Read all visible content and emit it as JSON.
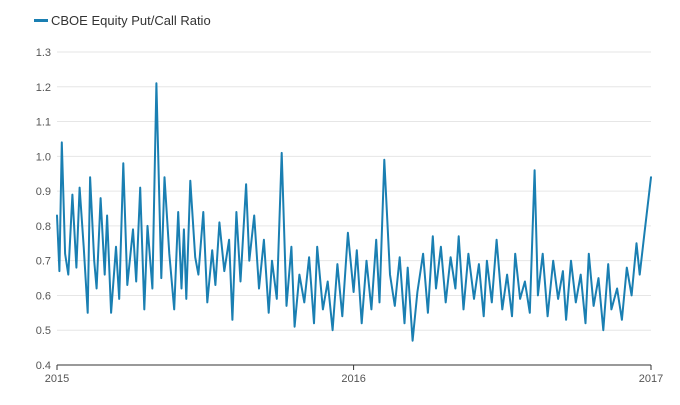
{
  "chart_data": {
    "type": "line",
    "legend": {
      "placement": "top-left"
    },
    "series": [
      {
        "name": "CBOE Equity Put/Call Ratio",
        "color": "#1a7fb2"
      }
    ],
    "ylim": [
      0.4,
      1.3
    ],
    "yticks": [
      "0.4",
      "0.5",
      "0.6",
      "0.7",
      "0.8",
      "0.9",
      "1.0",
      "1.1",
      "1.2",
      "1.3"
    ],
    "ytick_values": [
      0.4,
      0.5,
      0.6,
      0.7,
      0.8,
      0.9,
      1.0,
      1.1,
      1.2,
      1.3
    ],
    "xlim": [
      "2015-01-02",
      "2017-01-06"
    ],
    "xticks": [
      {
        "label": "2015",
        "date": "2015-01-02"
      },
      {
        "label": "2016",
        "date": "2016-01-04"
      },
      {
        "label": "2017",
        "date": "2017-01-06"
      }
    ],
    "grid": {
      "horizontal": true,
      "vertical": false,
      "color": "#e6e6e6"
    },
    "x": [
      "2015-01-02",
      "2015-01-05",
      "2015-01-08",
      "2015-01-12",
      "2015-01-16",
      "2015-01-21",
      "2015-01-26",
      "2015-01-30",
      "2015-02-04",
      "2015-02-09",
      "2015-02-12",
      "2015-02-17",
      "2015-02-20",
      "2015-02-25",
      "2015-03-02",
      "2015-03-05",
      "2015-03-10",
      "2015-03-16",
      "2015-03-20",
      "2015-03-25",
      "2015-03-30",
      "2015-04-06",
      "2015-04-10",
      "2015-04-15",
      "2015-04-20",
      "2015-04-24",
      "2015-04-30",
      "2015-05-05",
      "2015-05-11",
      "2015-05-15",
      "2015-05-21",
      "2015-05-27",
      "2015-06-01",
      "2015-06-05",
      "2015-06-08",
      "2015-06-11",
      "2015-06-16",
      "2015-06-22",
      "2015-06-26",
      "2015-07-02",
      "2015-07-07",
      "2015-07-13",
      "2015-07-17",
      "2015-07-22",
      "2015-07-28",
      "2015-08-03",
      "2015-08-07",
      "2015-08-12",
      "2015-08-17",
      "2015-08-24",
      "2015-08-28",
      "2015-09-03",
      "2015-09-09",
      "2015-09-15",
      "2015-09-21",
      "2015-09-25",
      "2015-10-01",
      "2015-10-07",
      "2015-10-13",
      "2015-10-19",
      "2015-10-23",
      "2015-10-29",
      "2015-11-04",
      "2015-11-10",
      "2015-11-16",
      "2015-11-20",
      "2015-11-27",
      "2015-12-03",
      "2015-12-09",
      "2015-12-15",
      "2015-12-21",
      "2015-12-28",
      "2016-01-04",
      "2016-01-08",
      "2016-01-14",
      "2016-01-20",
      "2016-01-26",
      "2016-02-01",
      "2016-02-05",
      "2016-02-11",
      "2016-02-18",
      "2016-02-24",
      "2016-03-01",
      "2016-03-07",
      "2016-03-11",
      "2016-03-17",
      "2016-03-23",
      "2016-03-30",
      "2016-04-05",
      "2016-04-11",
      "2016-04-15",
      "2016-04-21",
      "2016-04-27",
      "2016-05-03",
      "2016-05-09",
      "2016-05-13",
      "2016-05-19",
      "2016-05-25",
      "2016-06-01",
      "2016-06-07",
      "2016-06-13",
      "2016-06-17",
      "2016-06-23",
      "2016-06-29",
      "2016-07-06",
      "2016-07-12",
      "2016-07-18",
      "2016-07-22",
      "2016-07-28",
      "2016-08-03",
      "2016-08-09",
      "2016-08-15",
      "2016-08-19",
      "2016-08-25",
      "2016-08-31",
      "2016-09-07",
      "2016-09-13",
      "2016-09-19",
      "2016-09-23",
      "2016-09-29",
      "2016-10-05",
      "2016-10-11",
      "2016-10-17",
      "2016-10-21",
      "2016-10-27",
      "2016-11-02",
      "2016-11-08",
      "2016-11-14",
      "2016-11-18",
      "2016-11-25",
      "2016-12-01",
      "2016-12-07",
      "2016-12-13",
      "2016-12-19",
      "2016-12-23",
      "2016-12-29",
      "2017-01-06"
    ],
    "values": [
      0.83,
      0.67,
      1.04,
      0.72,
      0.66,
      0.89,
      0.68,
      0.91,
      0.74,
      0.55,
      0.94,
      0.7,
      0.62,
      0.88,
      0.66,
      0.83,
      0.55,
      0.74,
      0.59,
      0.98,
      0.63,
      0.79,
      0.64,
      0.91,
      0.56,
      0.8,
      0.62,
      1.21,
      0.65,
      0.94,
      0.72,
      0.56,
      0.84,
      0.62,
      0.79,
      0.59,
      0.93,
      0.71,
      0.66,
      0.84,
      0.58,
      0.73,
      0.63,
      0.81,
      0.67,
      0.76,
      0.53,
      0.84,
      0.64,
      0.92,
      0.7,
      0.83,
      0.62,
      0.76,
      0.55,
      0.7,
      0.59,
      1.01,
      0.57,
      0.74,
      0.51,
      0.66,
      0.58,
      0.71,
      0.52,
      0.74,
      0.56,
      0.64,
      0.5,
      0.69,
      0.54,
      0.78,
      0.61,
      0.73,
      0.52,
      0.7,
      0.56,
      0.76,
      0.58,
      0.99,
      0.66,
      0.57,
      0.71,
      0.52,
      0.68,
      0.47,
      0.61,
      0.72,
      0.55,
      0.77,
      0.62,
      0.74,
      0.58,
      0.71,
      0.62,
      0.77,
      0.56,
      0.72,
      0.59,
      0.69,
      0.54,
      0.7,
      0.58,
      0.76,
      0.56,
      0.66,
      0.54,
      0.72,
      0.59,
      0.64,
      0.55,
      0.96,
      0.6,
      0.72,
      0.54,
      0.7,
      0.59,
      0.67,
      0.53,
      0.7,
      0.58,
      0.66,
      0.52,
      0.72,
      0.57,
      0.65,
      0.5,
      0.69,
      0.56,
      0.62,
      0.53,
      0.68,
      0.6,
      0.75,
      0.66,
      0.78,
      0.94
    ]
  }
}
